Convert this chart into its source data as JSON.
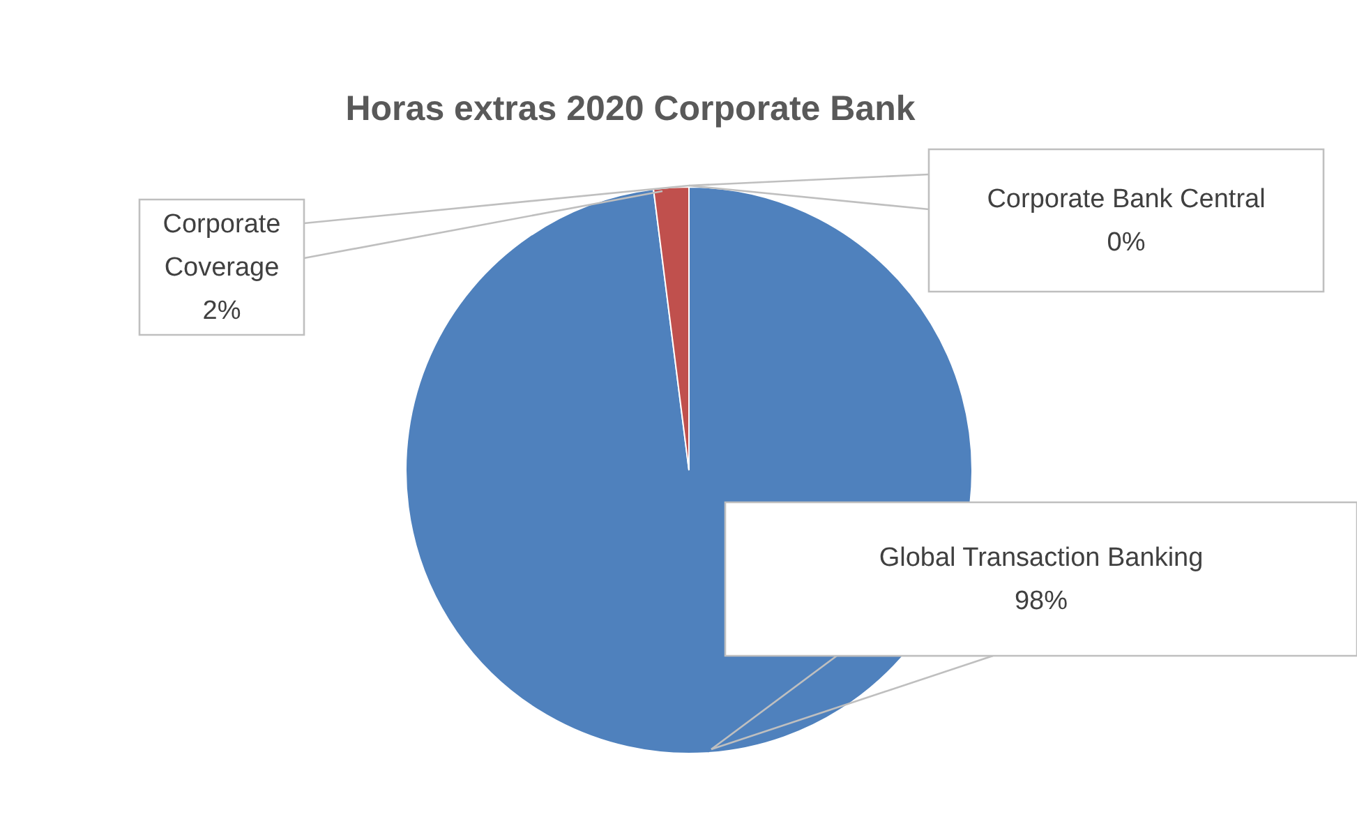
{
  "chart_data": {
    "type": "pie",
    "title": "Horas extras 2020 Corporate Bank",
    "categories": [
      "Global Transaction Banking",
      "Corporate Coverage",
      "Corporate Bank Central"
    ],
    "values": [
      98,
      2,
      0
    ],
    "colors": [
      "#4f81bd",
      "#c0504d",
      "#9bbb59"
    ],
    "value_labels": [
      "98%",
      "2%",
      "0%"
    ]
  }
}
